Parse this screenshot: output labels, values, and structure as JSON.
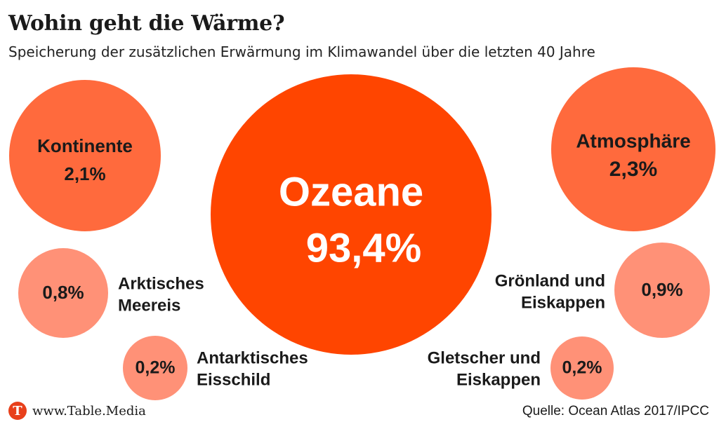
{
  "title": "Wohin geht die Wärme?",
  "subtitle": "Speicherung der zusätzlichen Erwärmung im Klimawandel über die letzten 40 Jahre",
  "footer": {
    "logo_letter": "T",
    "website": "www.Table.Media",
    "source": "Quelle: Ocean Atlas 2017/IPCC"
  },
  "colors": {
    "ocean": "#ff4500",
    "medium": "#ff6a3d",
    "small": "#ff9177",
    "logo": "#e8401b"
  },
  "chart_data": {
    "type": "bubble",
    "title": "Wohin geht die Wärme?",
    "subtitle": "Speicherung der zusätzlichen Erwärmung im Klimawandel über die letzten 40 Jahre",
    "unit": "%",
    "items": [
      {
        "id": "ozeane",
        "name": "Ozeane",
        "value": 93.4,
        "label": "93,4%"
      },
      {
        "id": "kontinente",
        "name": "Kontinente",
        "value": 2.1,
        "label": "2,1%"
      },
      {
        "id": "atmosphaere",
        "name": "Atmosphäre",
        "value": 2.3,
        "label": "2,3%"
      },
      {
        "id": "arktisches-meereis",
        "name": "Arktisches Meereis",
        "value": 0.8,
        "label": "0,8%"
      },
      {
        "id": "groenland-eiskappen",
        "name": "Grönland und Eiskappen",
        "value": 0.9,
        "label": "0,9%"
      },
      {
        "id": "antarktisches-eisschild",
        "name": "Antarktisches Eisschild",
        "value": 0.2,
        "label": "0,2%"
      },
      {
        "id": "gletscher-eiskappen",
        "name": "Gletscher und Eiskappen",
        "value": 0.2,
        "label": "0,2%"
      }
    ]
  }
}
